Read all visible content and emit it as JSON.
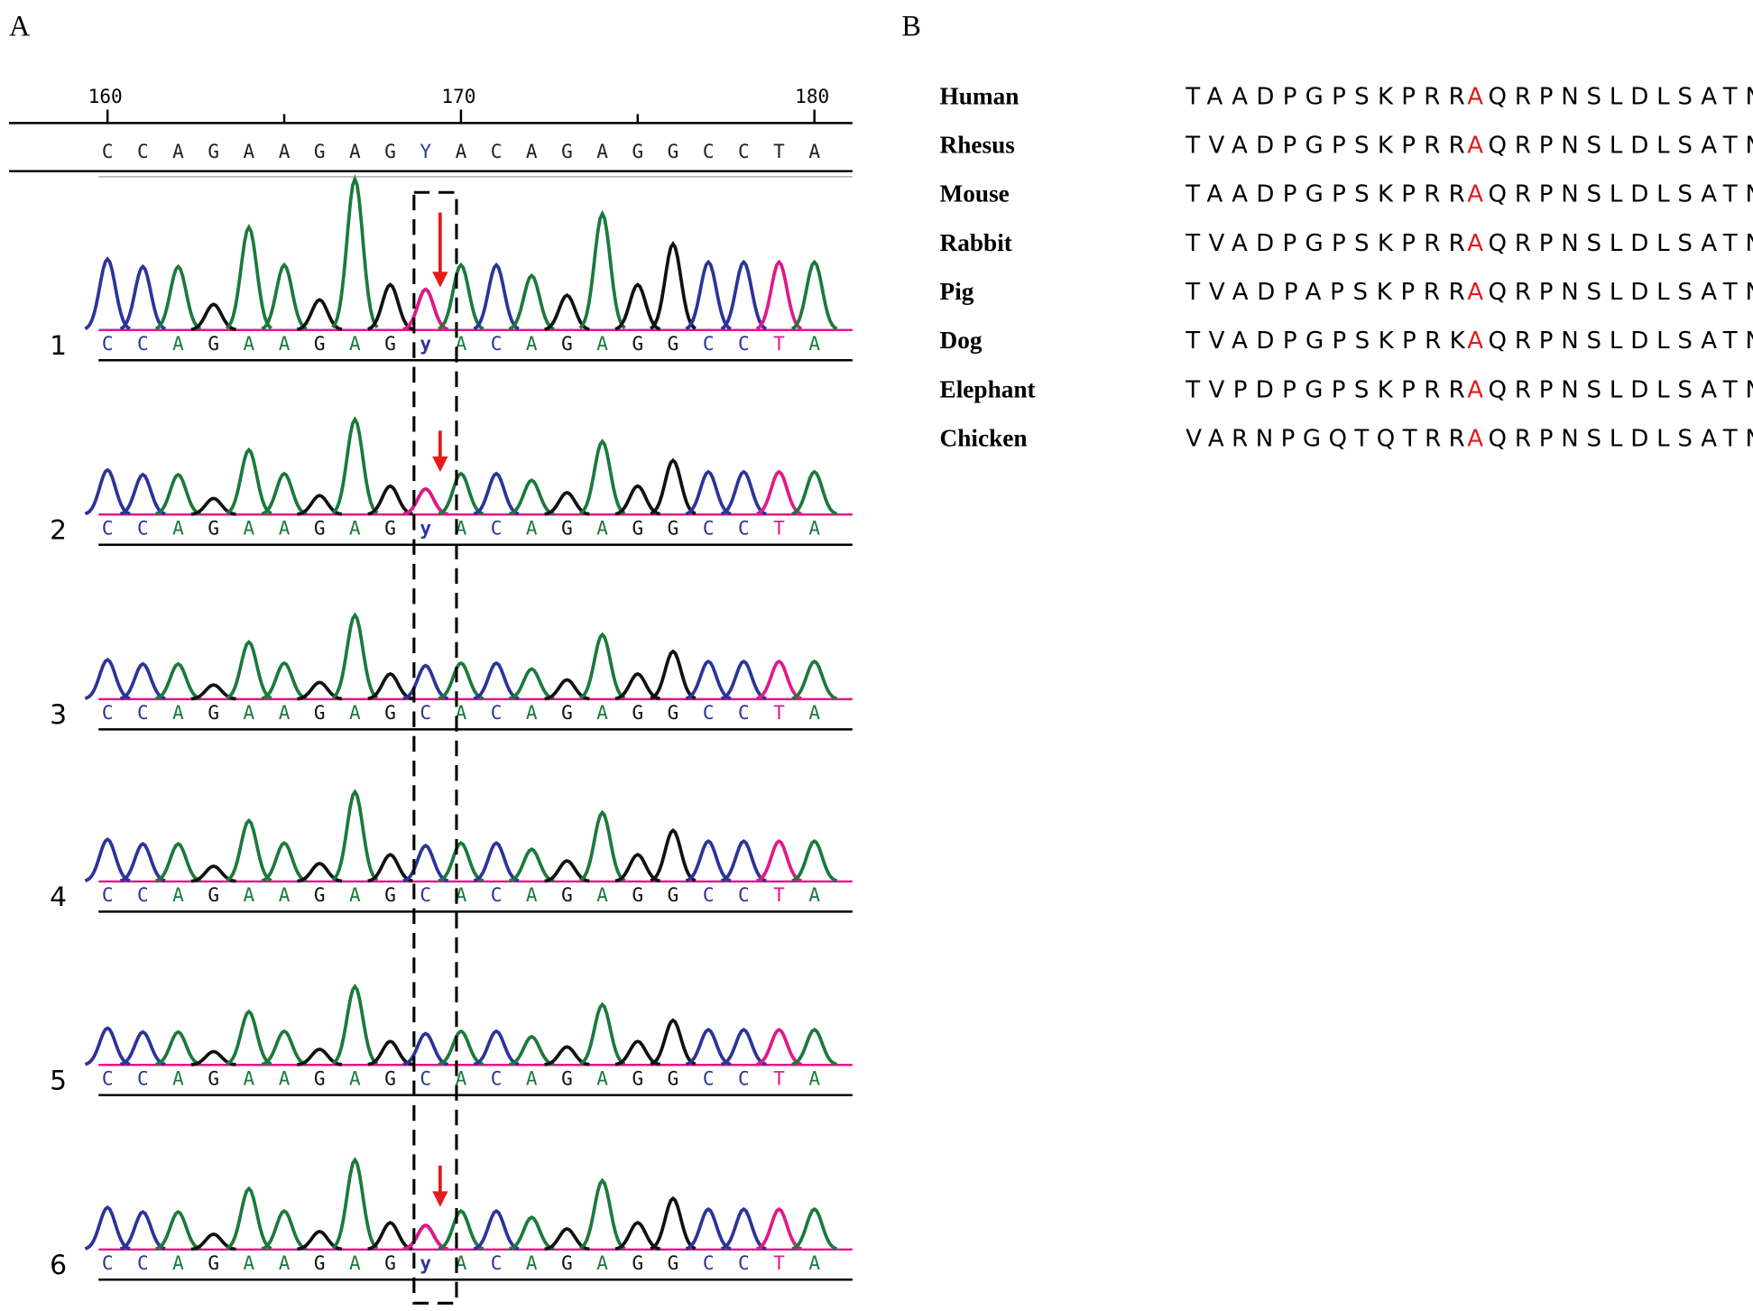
{
  "panel_a": {
    "label": "A",
    "ruler_ticks": [
      160,
      170,
      180
    ],
    "reference": [
      "C",
      "C",
      "A",
      "G",
      "A",
      "A",
      "G",
      "A",
      "G",
      "Y",
      "A",
      "C",
      "A",
      "G",
      "A",
      "G",
      "G",
      "C",
      "C",
      "T",
      "A"
    ],
    "traces": [
      {
        "label": "1",
        "bases": [
          "C",
          "C",
          "A",
          "G",
          "A",
          "A",
          "G",
          "A",
          "G",
          "y",
          "A",
          "C",
          "A",
          "G",
          "A",
          "G",
          "G",
          "C",
          "C",
          "T",
          "A"
        ]
      },
      {
        "label": "2",
        "bases": [
          "C",
          "C",
          "A",
          "G",
          "A",
          "A",
          "G",
          "A",
          "G",
          "y",
          "A",
          "C",
          "A",
          "G",
          "A",
          "G",
          "G",
          "C",
          "C",
          "T",
          "A"
        ]
      },
      {
        "label": "3",
        "bases": [
          "C",
          "C",
          "A",
          "G",
          "A",
          "A",
          "G",
          "A",
          "G",
          "C",
          "A",
          "C",
          "A",
          "G",
          "A",
          "G",
          "G",
          "C",
          "C",
          "T",
          "A"
        ]
      },
      {
        "label": "4",
        "bases": [
          "C",
          "C",
          "A",
          "G",
          "A",
          "A",
          "G",
          "A",
          "G",
          "C",
          "A",
          "C",
          "A",
          "G",
          "A",
          "G",
          "G",
          "C",
          "C",
          "T",
          "A"
        ]
      },
      {
        "label": "5",
        "bases": [
          "C",
          "C",
          "A",
          "G",
          "A",
          "A",
          "G",
          "A",
          "G",
          "C",
          "A",
          "C",
          "A",
          "G",
          "A",
          "G",
          "G",
          "C",
          "C",
          "T",
          "A"
        ]
      },
      {
        "label": "6",
        "bases": [
          "C",
          "C",
          "A",
          "G",
          "A",
          "A",
          "G",
          "A",
          "G",
          "y",
          "A",
          "C",
          "A",
          "G",
          "A",
          "G",
          "G",
          "C",
          "C",
          "T",
          "A"
        ]
      }
    ]
  },
  "panel_b": {
    "label": "B",
    "rows": [
      {
        "species": "Human",
        "before": "TAADPGPSKPRR",
        "site": "A",
        "after": "QRPNSLDLSATN"
      },
      {
        "species": "Rhesus",
        "before": "TVADPGPSKPRR",
        "site": "A",
        "after": "QRPNSLDLSATN"
      },
      {
        "species": "Mouse",
        "before": "TAADPGPSKPRR",
        "site": "A",
        "after": "QRPNSLDLSATN"
      },
      {
        "species": "Rabbit",
        "before": "TVADPGPSKPRR",
        "site": "A",
        "after": "QRPNSLDLSATN"
      },
      {
        "species": "Pig",
        "before": "TVADPAPSKPRR",
        "site": "A",
        "after": "QRPNSLDLSATN"
      },
      {
        "species": "Dog",
        "before": "TVADPGPSKPRK",
        "site": "A",
        "after": "QRPNSLDLSATN"
      },
      {
        "species": "Elephant",
        "before": "TVPDPGPSKPRR",
        "site": "A",
        "after": "QRPNSLDLSATN"
      },
      {
        "species": "Chicken",
        "before": "VARNPGQTQTRR",
        "site": "A",
        "after": "QRPNSLDLSATN"
      }
    ]
  }
}
